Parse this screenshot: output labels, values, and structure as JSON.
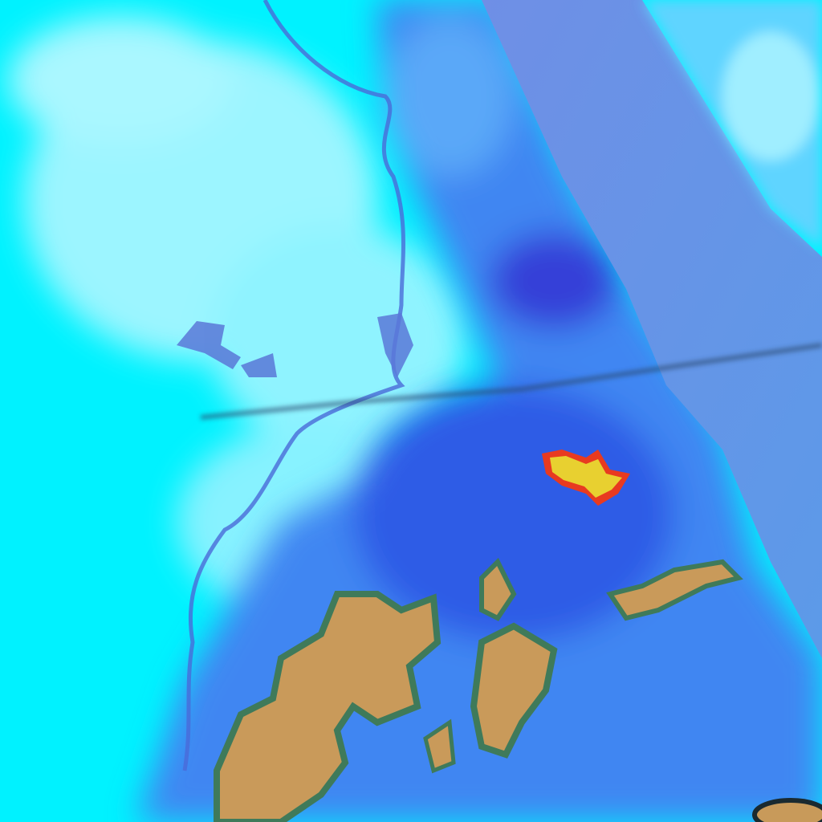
{
  "image": {
    "kind": "false-color satellite imagery",
    "colors": {
      "cyan_cloud": "#00f4ff",
      "bright_cloud": "#bff8ff",
      "blue_land": "#3a7af0",
      "deep_blue": "#2e4ee0",
      "sea": "#6a8ee8",
      "terrain_tan": "#c89a5a",
      "terrain_green": "#3f7a5a",
      "hotspot_yellow": "#e8d030",
      "hotspot_red": "#e83a20",
      "river": "#4a6ad8"
    }
  }
}
